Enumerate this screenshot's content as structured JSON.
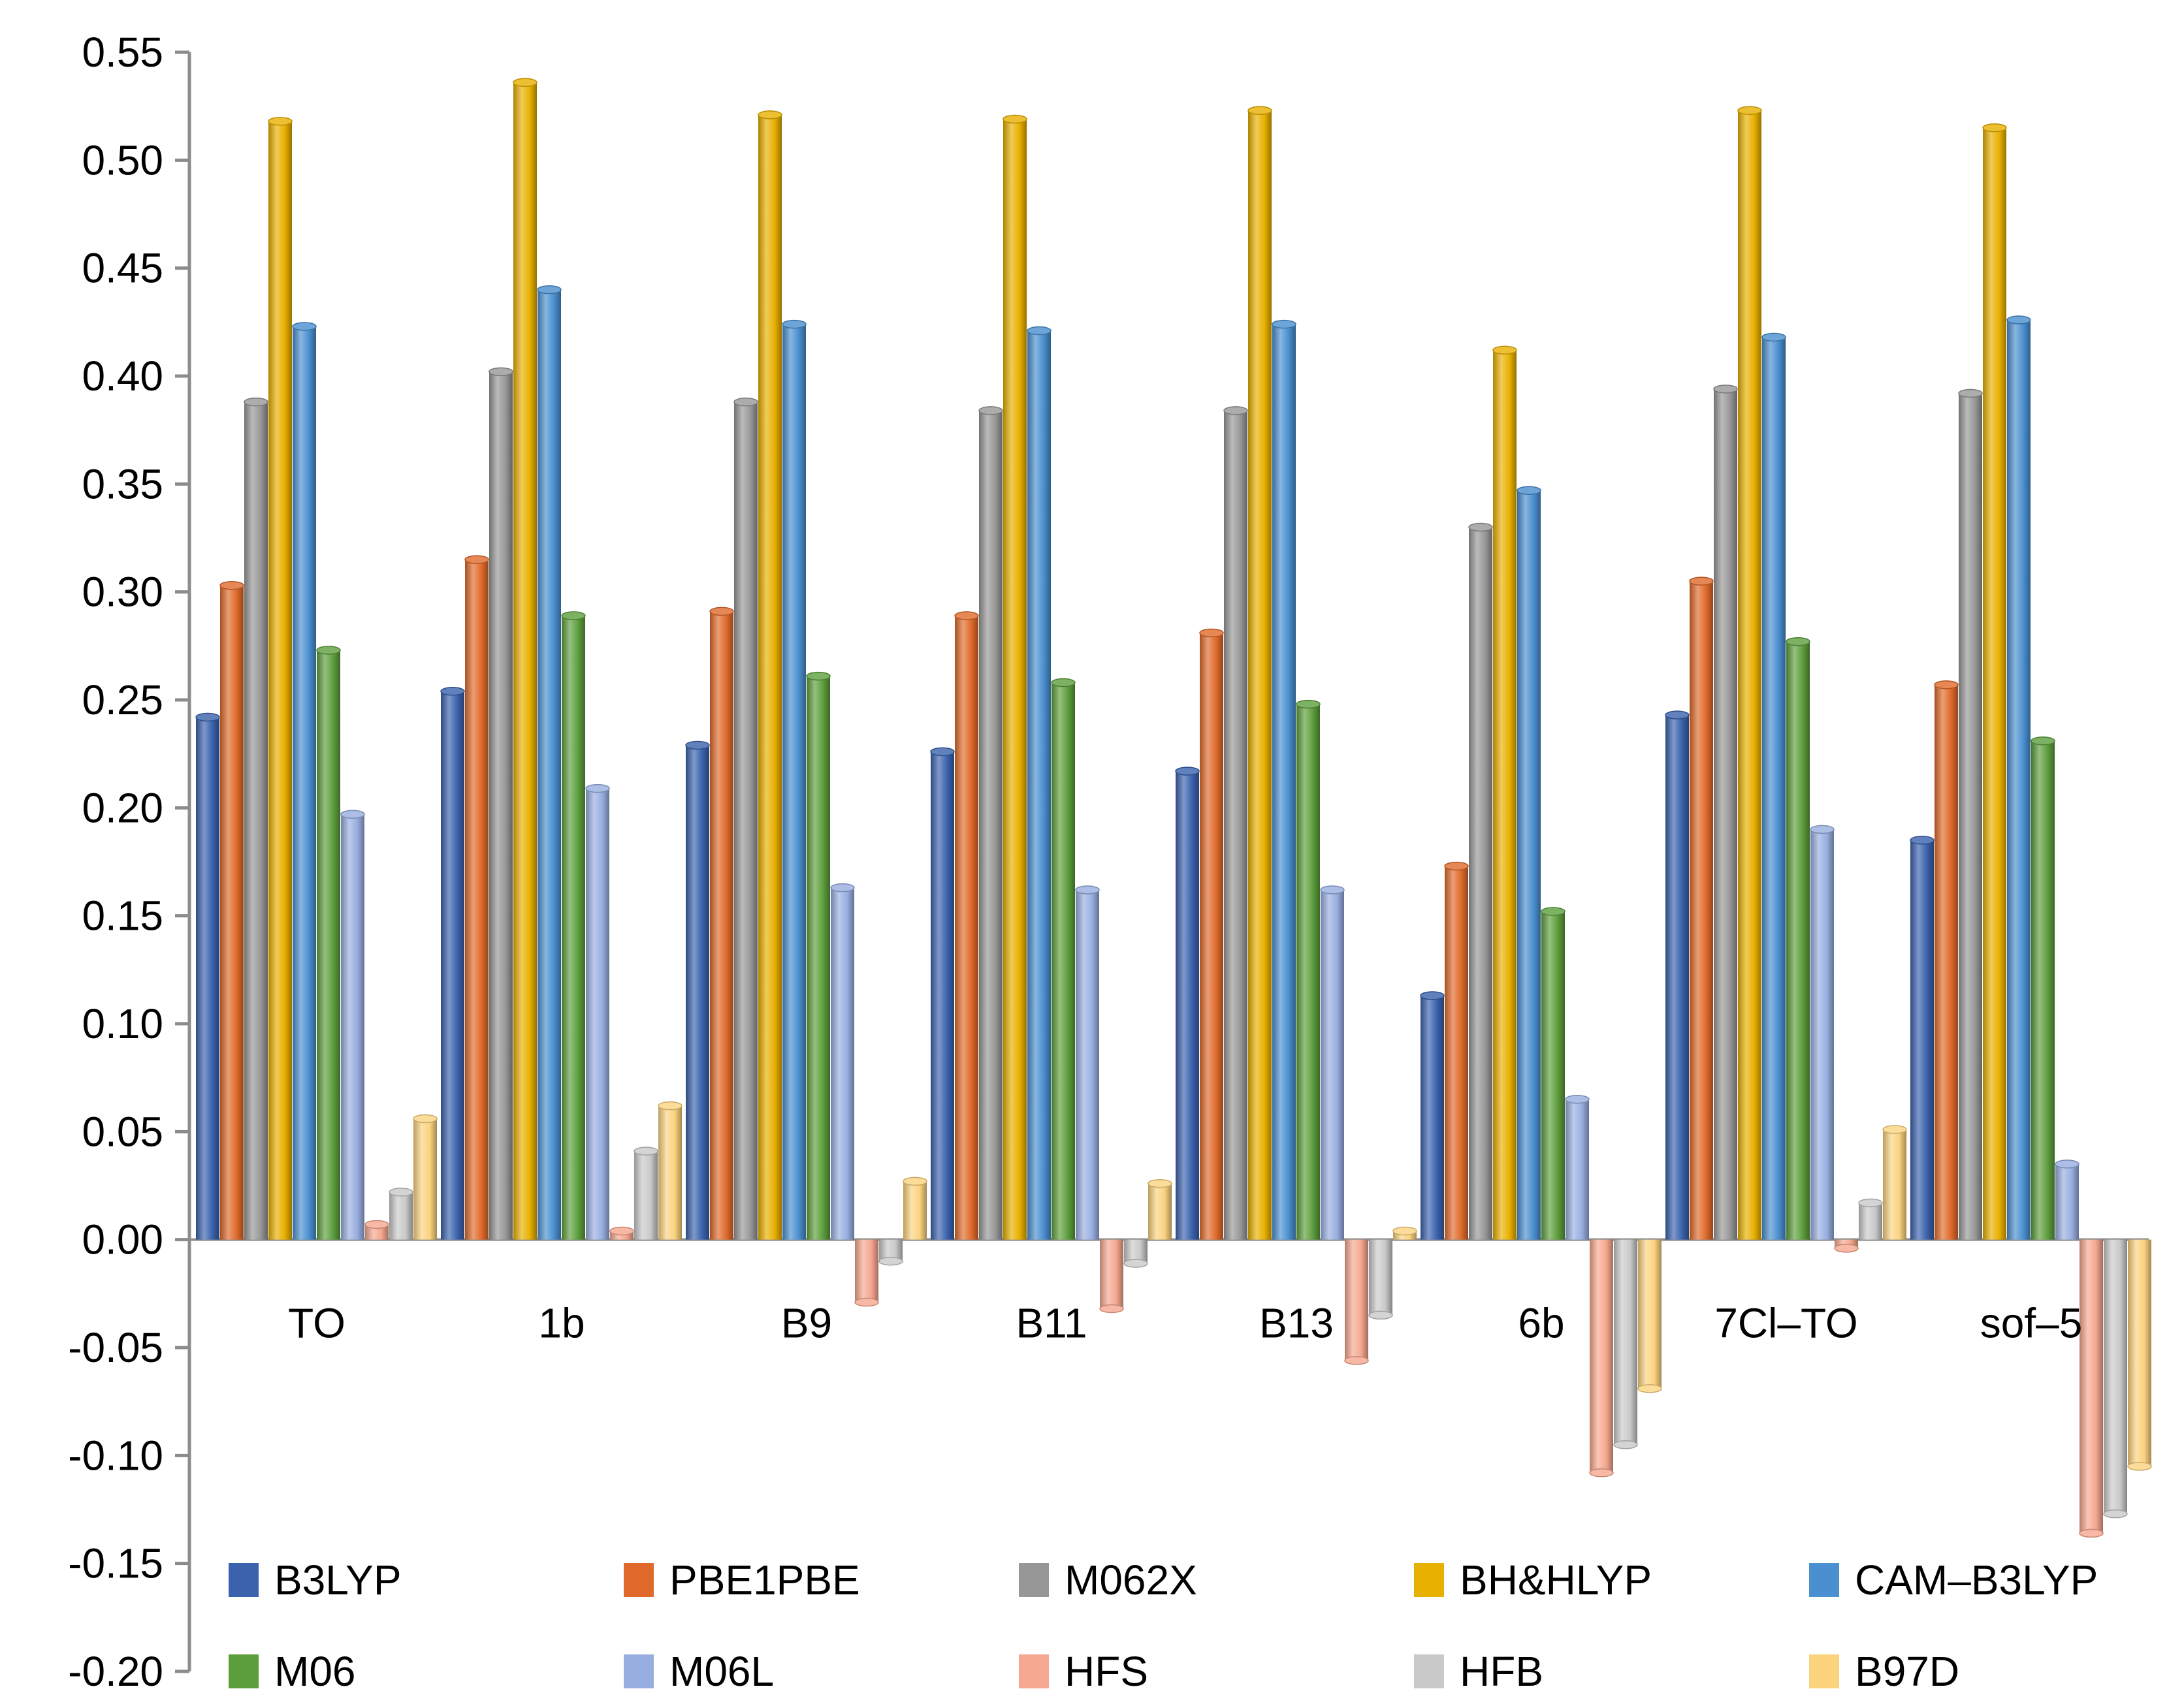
{
  "chart_data": {
    "type": "bar",
    "title": "",
    "xlabel": "",
    "ylabel": "",
    "ylim": [
      -0.2,
      0.55
    ],
    "yticks": [
      "0.55",
      "0.50",
      "0.45",
      "0.40",
      "0.35",
      "0.30",
      "0.25",
      "0.20",
      "0.15",
      "0.10",
      "0.05",
      "0.00",
      "-0.05",
      "-0.10",
      "-0.15",
      "-0.20"
    ],
    "ytick_values": [
      0.55,
      0.5,
      0.45,
      0.4,
      0.35,
      0.3,
      0.25,
      0.2,
      0.15,
      0.1,
      0.05,
      0.0,
      -0.05,
      -0.1,
      -0.15,
      -0.2
    ],
    "grid": false,
    "legend_position": "bottom",
    "categories": [
      "TO",
      "1b",
      "B9",
      "B11",
      "B13",
      "6b",
      "7Cl–TO",
      "sof–5"
    ],
    "series": [
      {
        "name": "B3LYP",
        "color": "#3a62ad",
        "values": [
          0.242,
          0.254,
          0.229,
          0.226,
          0.217,
          0.113,
          0.243,
          0.185
        ]
      },
      {
        "name": "PBE1PBE",
        "color": "#e06a2b",
        "values": [
          0.303,
          0.315,
          0.291,
          0.289,
          0.281,
          0.173,
          0.305,
          0.257
        ]
      },
      {
        "name": "M062X",
        "color": "#979797",
        "values": [
          0.388,
          0.402,
          0.388,
          0.384,
          0.384,
          0.33,
          0.394,
          0.392
        ]
      },
      {
        "name": "BH&HLYP",
        "color": "#e8b000",
        "values": [
          0.518,
          0.536,
          0.521,
          0.519,
          0.523,
          0.412,
          0.523,
          0.515
        ]
      },
      {
        "name": "CAM–B3LYP",
        "color": "#4a8fd0",
        "values": [
          0.423,
          0.44,
          0.424,
          0.421,
          0.424,
          0.347,
          0.418,
          0.426
        ]
      },
      {
        "name": "M06",
        "color": "#5d9e3c",
        "values": [
          0.273,
          0.289,
          0.261,
          0.258,
          0.248,
          0.152,
          0.277,
          0.231
        ]
      },
      {
        "name": "M06L",
        "color": "#98aee0",
        "values": [
          0.197,
          0.209,
          0.163,
          0.162,
          0.162,
          0.065,
          0.19,
          0.035
        ]
      },
      {
        "name": "HFS",
        "color": "#f5a78f",
        "values": [
          0.007,
          0.004,
          -0.029,
          -0.032,
          -0.056,
          -0.108,
          -0.004,
          -0.136
        ]
      },
      {
        "name": "HFB",
        "color": "#c9c9c9",
        "values": [
          0.022,
          0.041,
          -0.01,
          -0.011,
          -0.035,
          -0.095,
          0.017,
          -0.127
        ]
      },
      {
        "name": "B97D",
        "color": "#fbd37f",
        "values": [
          0.056,
          0.062,
          0.027,
          0.026,
          0.004,
          -0.069,
          0.051,
          -0.105
        ]
      }
    ]
  }
}
